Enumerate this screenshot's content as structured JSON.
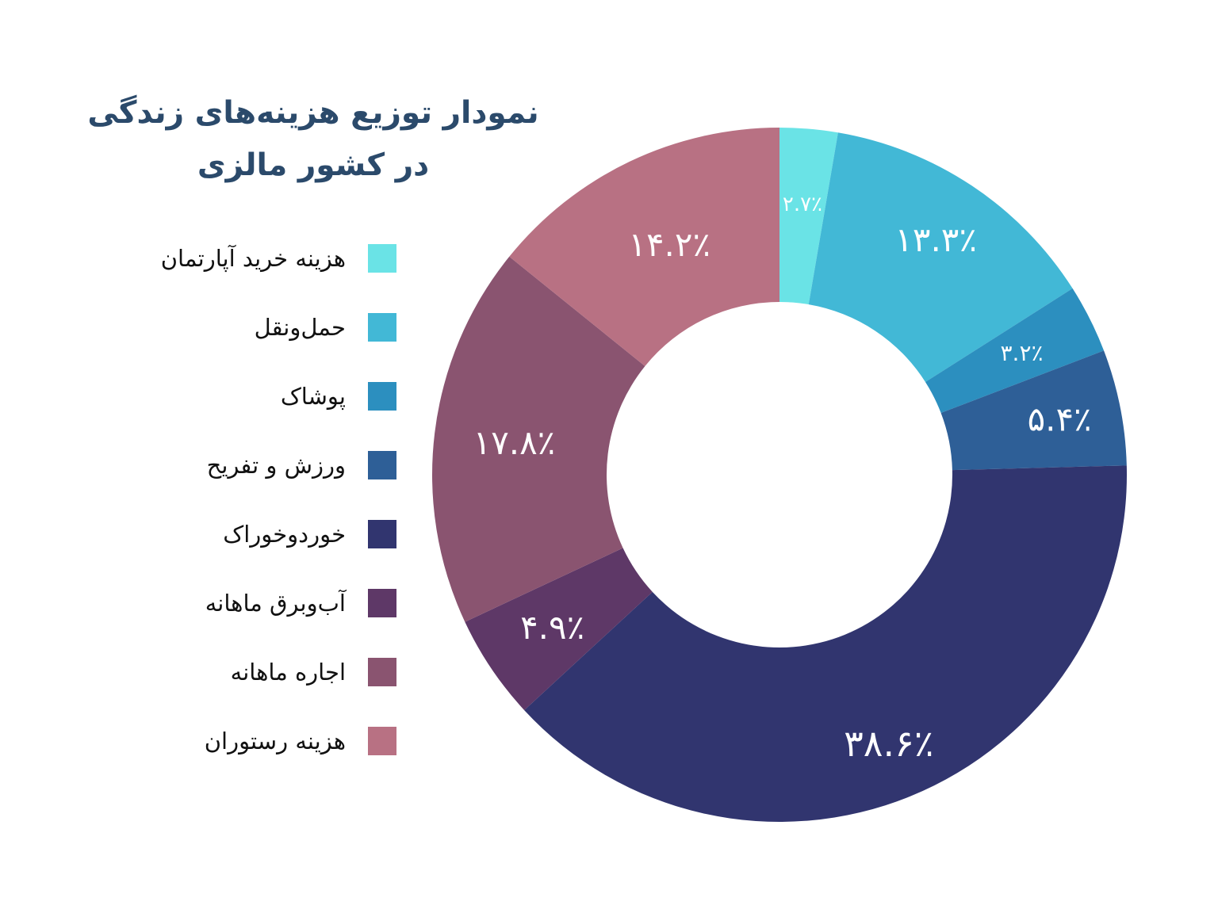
{
  "title_lines": [
    "نمودار توزیع هزینه‌های زندگی",
    "در کشور مالزی"
  ],
  "chart_data": {
    "type": "pie",
    "variant": "donut",
    "title": "نمودار توزیع هزینه‌های زندگی در کشور مالزی",
    "legend_position": "left",
    "slices": [
      {
        "label": "هزینه خرید آپارتمان",
        "value": 2.7,
        "display": "۲.۷٪",
        "color": "#6ae3e6"
      },
      {
        "label": "حمل‌ونقل",
        "value": 13.3,
        "display": "۱۳.۳٪",
        "color": "#42b8d6"
      },
      {
        "label": "پوشاک",
        "value": 3.2,
        "display": "۳.۲٪",
        "color": "#2c8fbf"
      },
      {
        "label": "ورزش و تفریح",
        "value": 5.4,
        "display": "۵.۴٪",
        "color": "#2e5f97"
      },
      {
        "label": "خوردوخوراک",
        "value": 38.6,
        "display": "۳۸.۶٪",
        "color": "#31356f"
      },
      {
        "label": "آب‌وبرق ماهانه",
        "value": 4.9,
        "display": "۴.۹٪",
        "color": "#5e3867"
      },
      {
        "label": "اجاره ماهانه",
        "value": 17.8,
        "display": "۱۷.۸٪",
        "color": "#8a5470"
      },
      {
        "label": "هزینه رستوران",
        "value": 14.2,
        "display": "۱۴.۲٪",
        "color": "#b87183"
      }
    ]
  }
}
